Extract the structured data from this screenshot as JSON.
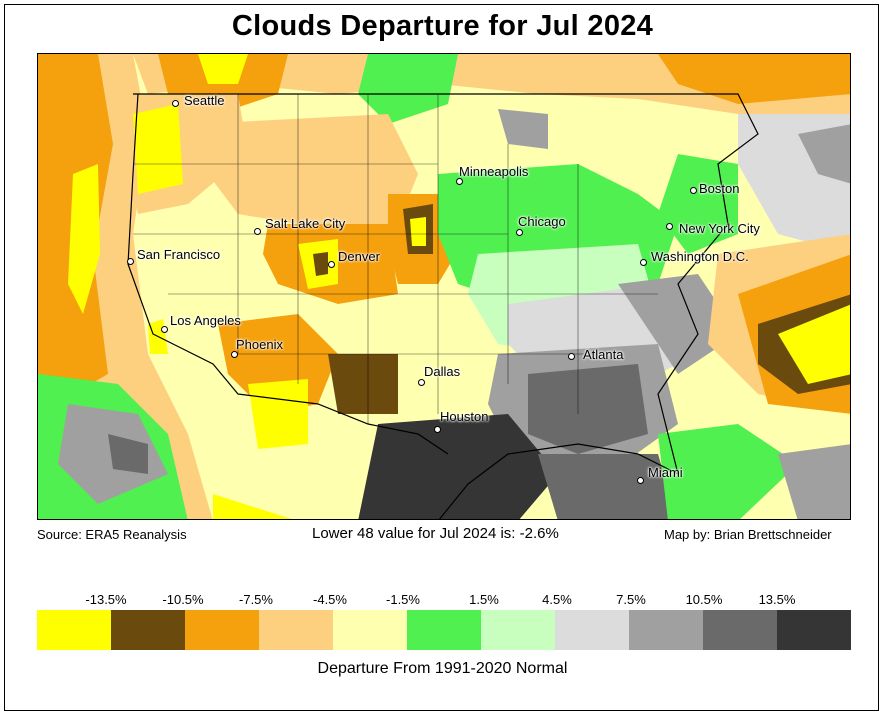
{
  "title": "Clouds Departure for Jul 2024",
  "source": "Source: ERA5 Reanalysis",
  "summary": "Lower 48 value for Jul 2024 is: -2.6%",
  "credit": "Map by: Brian Brettschneider",
  "legend": {
    "caption": "Departure From 1991-2020 Normal",
    "ticks": [
      "-13.5%",
      "-10.5%",
      "-7.5%",
      "-4.5%",
      "-1.5%",
      "1.5%",
      "4.5%",
      "7.5%",
      "10.5%",
      "13.5%"
    ],
    "colors": [
      "#ffff00",
      "#6b4a0e",
      "#f5a00d",
      "#fdd080",
      "#ffffb0",
      "#50f050",
      "#c8ffbe",
      "#dcdcdc",
      "#a0a0a0",
      "#6a6a6a",
      "#353535"
    ]
  },
  "cities": [
    {
      "name": "Seattle"
    },
    {
      "name": "San Francisco"
    },
    {
      "name": "Los Angeles"
    },
    {
      "name": "Phoenix"
    },
    {
      "name": "Salt Lake City"
    },
    {
      "name": "Denver"
    },
    {
      "name": "Minneapolis"
    },
    {
      "name": "Chicago"
    },
    {
      "name": "Dallas"
    },
    {
      "name": "Houston"
    },
    {
      "name": "Atlanta"
    },
    {
      "name": "Miami"
    },
    {
      "name": "Washington D.C."
    },
    {
      "name": "New York City"
    },
    {
      "name": "Boston"
    }
  ]
}
